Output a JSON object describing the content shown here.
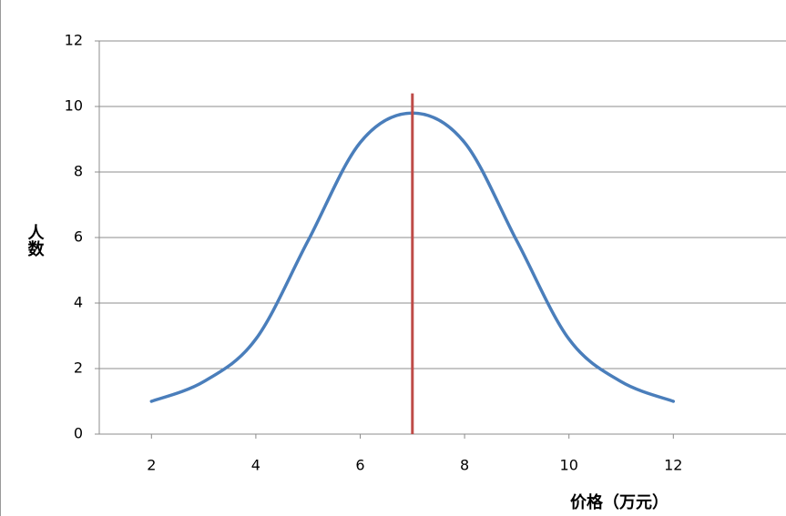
{
  "chart_data": {
    "type": "line",
    "x": [
      2,
      3,
      4,
      5,
      6,
      7,
      8,
      9,
      10,
      11,
      12
    ],
    "series": [
      {
        "color": "#4a7ebb",
        "values": [
          1.0,
          1.6,
          2.9,
          5.9,
          8.9,
          9.8,
          8.9,
          5.9,
          2.9,
          1.6,
          1.0
        ]
      }
    ],
    "reference_line": {
      "x": 7,
      "top": 10.4,
      "color": "#be4b48"
    },
    "xlim": [
      1,
      14
    ],
    "ylim": [
      0,
      12
    ],
    "xticks": [
      2,
      4,
      6,
      8,
      10,
      12
    ],
    "yticks": [
      0,
      2,
      4,
      6,
      8,
      10,
      12
    ],
    "grid": true,
    "xlabel": "价格（万元）",
    "ylabel": "人数"
  }
}
